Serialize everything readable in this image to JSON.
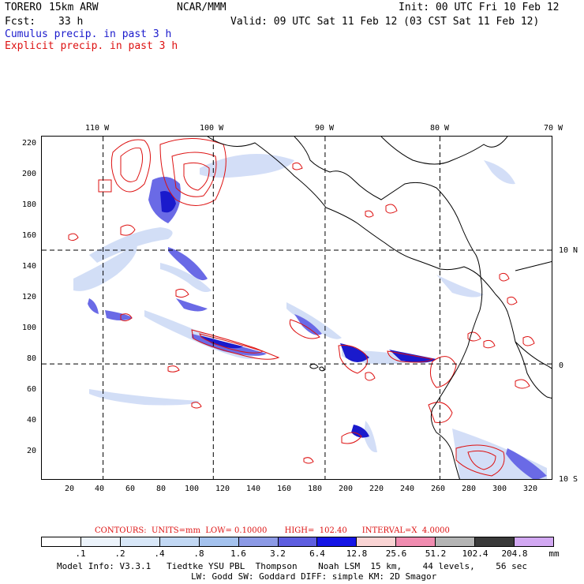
{
  "header": {
    "model": "TORERO",
    "resolution": "15km ARW",
    "center": "NCAR/MMM",
    "init": "Init: 00 UTC Fri 10 Feb 12",
    "fcst_label": "Fcst:",
    "fcst_value": "33 h",
    "valid": "Valid: 09 UTC Sat 11 Feb 12 (03 CST Sat 11 Feb 12)",
    "line1": "Cumulus precip. in past 3 h",
    "line2": "Explicit precip. in past 3 h"
  },
  "map": {
    "top_lon_labels": [
      "110 W",
      "100 W",
      "90 W",
      "80 W",
      "70 W"
    ],
    "right_lat_labels": [
      "10 N",
      "0",
      "10 S"
    ],
    "x_ticks": [
      "20",
      "40",
      "60",
      "80",
      "100",
      "120",
      "140",
      "160",
      "180",
      "200",
      "220",
      "240",
      "260",
      "280",
      "300",
      "320"
    ],
    "y_ticks": [
      "220",
      "200",
      "180",
      "160",
      "140",
      "120",
      "100",
      "80",
      "60",
      "40",
      "20"
    ],
    "x_range": [
      0,
      334
    ],
    "y_range": [
      0,
      224
    ],
    "grid_x": [
      40,
      112,
      185,
      260
    ],
    "grid_y": [
      76,
      150
    ],
    "colors": {
      "coast": "#000000",
      "explicit": "#dd1111",
      "cumulus_dark": "#1a1acc",
      "cumulus_mid": "#6a6ae6",
      "cumulus_light": "#c8d6f5"
    }
  },
  "contours": {
    "text": "CONTOURS:  UNITS=mm  LOW= 0.10000       HIGH=  102.40      INTERVAL=X  4.0000"
  },
  "colorbar": {
    "labels": [
      ".1",
      ".2",
      ".4",
      ".8",
      "1.6",
      "3.2",
      "6.4",
      "12.8",
      "25.6",
      "51.2",
      "102.4",
      "204.8",
      "mm"
    ],
    "colors": [
      "#ffffff",
      "#ecf3fb",
      "#d8e7f8",
      "#c2d8f4",
      "#a4c2ee",
      "#8c9ae6",
      "#5e5ee0",
      "#1515e6",
      "#fad4d4",
      "#f08cb0",
      "#b4b4b4",
      "#3a3a3a",
      "#d2a8f2"
    ]
  },
  "footer": {
    "line1": "Model Info: V3.3.1   Tiedtke YSU PBL  Thompson    Noah LSM  15 km,    44 levels,    56 sec",
    "line2": "LW: Godd SW: Goddard DIFF: simple KM: 2D Smagor"
  }
}
